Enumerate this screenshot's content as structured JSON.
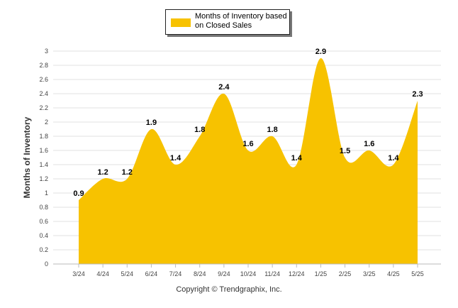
{
  "chart_data": {
    "type": "area",
    "categories": [
      "3/24",
      "4/24",
      "5/24",
      "6/24",
      "7/24",
      "8/24",
      "9/24",
      "10/24",
      "11/24",
      "12/24",
      "1/25",
      "2/25",
      "3/25",
      "4/25",
      "5/25"
    ],
    "series": [
      {
        "name": "Months of Inventory based on Closed Sales",
        "values": [
          0.9,
          1.2,
          1.2,
          1.9,
          1.4,
          1.8,
          2.4,
          1.6,
          1.8,
          1.4,
          2.9,
          1.5,
          1.6,
          1.4,
          2.3
        ],
        "color": "#F7C200"
      }
    ],
    "ylabel": "Months of Inventory",
    "xlabel": "",
    "ylim": [
      0,
      3
    ],
    "yticks": [
      "0",
      "0.2",
      "0.4",
      "0.6",
      "0.8",
      "1",
      "1.2",
      "1.4",
      "1.6",
      "1.8",
      "2",
      "2.2",
      "2.4",
      "2.6",
      "2.8",
      "3"
    ],
    "data_labels": [
      "0.9",
      "1.2",
      "1.2",
      "1.9",
      "1.4",
      "1.8",
      "2.4",
      "1.6",
      "1.8",
      "1.4",
      "2.9",
      "1.5",
      "1.6",
      "1.4",
      "2.3"
    ],
    "legend": "top-center",
    "grid": true
  },
  "legend": {
    "label": "Months of Inventory based on Closed Sales"
  },
  "footer": {
    "copyright": "Copyright © Trendgraphix, Inc."
  }
}
